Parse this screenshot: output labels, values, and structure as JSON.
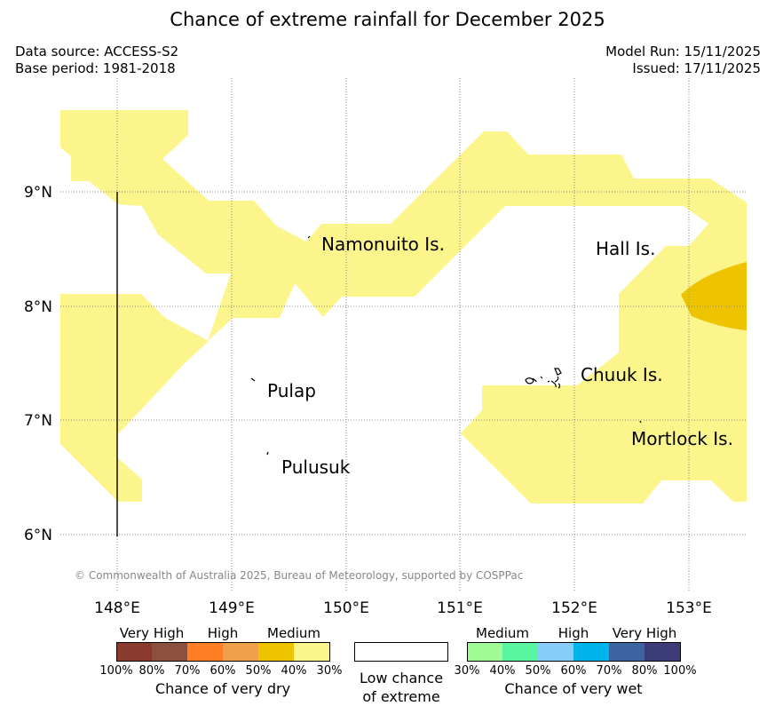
{
  "title": "Chance of extreme rainfall for December 2025",
  "data_source": "Data source: ACCESS-S2",
  "base_period": "Base period: 1981-2018",
  "model_run": "Model Run: 15/11/2025",
  "issued": "Issued: 17/11/2025",
  "copyright": "© Commonwealth of Australia 2025, Bureau of Meteorology, supported by COSPPac",
  "axes": {
    "lat_labels": [
      "9°N",
      "8°N",
      "7°N",
      "6°N"
    ],
    "lon_labels": [
      "148°E",
      "149°E",
      "150°E",
      "151°E",
      "152°E",
      "153°E"
    ]
  },
  "places": {
    "namonuito": "Namonuito Is.",
    "hall": "Hall Is.",
    "pulap": "Pulap",
    "chuuk": "Chuuk Is.",
    "mortlock": "Mortlock Is.",
    "pulusuk": "Pulusuk"
  },
  "legend": {
    "dry": {
      "heads": [
        "Very High",
        "High",
        "Medium"
      ],
      "percents": [
        "100%",
        "80%",
        "70%",
        "60%",
        "50%",
        "40%",
        "30%"
      ],
      "colors": [
        "#8b3a30",
        "#8c5040",
        "#ff7f27",
        "#f0a04b",
        "#eec300",
        "#fcf58c"
      ],
      "caption": "Chance of very dry"
    },
    "low": {
      "caption_line1": "Low chance",
      "caption_line2": "of extreme"
    },
    "wet": {
      "heads": [
        "Medium",
        "High",
        "Very High"
      ],
      "percents": [
        "30%",
        "40%",
        "50%",
        "60%",
        "70%",
        "80%",
        "100%"
      ],
      "colors": [
        "#a0fa96",
        "#5af5a0",
        "#87cdfa",
        "#00b4eb",
        "#3c64a0",
        "#3c3c78"
      ],
      "caption": "Chance of very wet"
    }
  },
  "colors": {
    "dry_30_40": "#fcf58c",
    "dry_40_50": "#eec300"
  }
}
